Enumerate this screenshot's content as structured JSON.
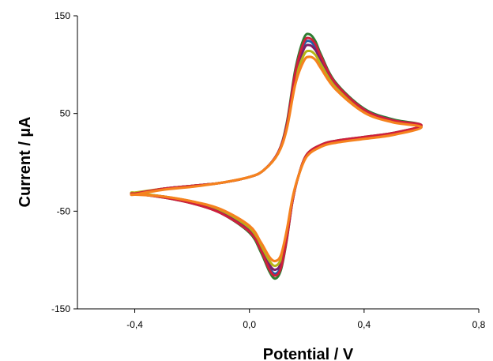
{
  "chart_data": {
    "type": "line",
    "title": "",
    "xlabel": "Potential / V",
    "ylabel": "Current / µA",
    "xlim": [
      -0.6,
      0.8
    ],
    "ylim": [
      -150,
      150
    ],
    "xticks": [
      -0.4,
      0.0,
      0.4,
      0.8
    ],
    "xtick_labels": [
      "-0,4",
      "0,0",
      "0,4",
      "0,8"
    ],
    "yticks": [
      -150,
      -50,
      50,
      150
    ],
    "ytick_labels": [
      "-150",
      "-50",
      "50",
      "150"
    ],
    "grid": false,
    "legend": "none",
    "series": [
      {
        "color": "#2e7d32",
        "x": [
          -0.4,
          -0.3,
          -0.2,
          -0.1,
          0.0,
          0.05,
          0.1,
          0.13,
          0.16,
          0.19,
          0.21,
          0.23,
          0.25,
          0.3,
          0.4,
          0.5,
          0.6,
          0.5,
          0.4,
          0.3,
          0.25,
          0.2,
          0.17,
          0.15,
          0.13,
          0.11,
          0.09,
          0.07,
          0.04,
          0.0,
          -0.1,
          -0.2,
          -0.3,
          -0.4
        ],
        "y": [
          -32,
          -27,
          -24,
          -21,
          -15,
          -8,
          10,
          40,
          95,
          127,
          131,
          124,
          110,
          82,
          55,
          44,
          38,
          30,
          26,
          22,
          18,
          8,
          -15,
          -40,
          -80,
          -110,
          -119,
          -112,
          -92,
          -72,
          -52,
          -42,
          -36,
          -32
        ]
      },
      {
        "color": "#1f5faa",
        "x": [
          -0.4,
          -0.3,
          -0.2,
          -0.1,
          0.0,
          0.05,
          0.1,
          0.13,
          0.16,
          0.19,
          0.21,
          0.23,
          0.25,
          0.3,
          0.4,
          0.5,
          0.6,
          0.5,
          0.4,
          0.3,
          0.25,
          0.2,
          0.17,
          0.15,
          0.13,
          0.11,
          0.09,
          0.07,
          0.04,
          0.0,
          -0.1,
          -0.2,
          -0.3,
          -0.4
        ],
        "y": [
          -32,
          -27,
          -24,
          -21,
          -15,
          -8,
          10,
          38,
          90,
          120,
          124,
          118,
          106,
          80,
          54,
          43,
          37,
          29,
          25,
          21,
          17,
          7,
          -15,
          -40,
          -78,
          -106,
          -114,
          -108,
          -89,
          -70,
          -51,
          -41,
          -35,
          -32
        ]
      },
      {
        "color": "#7a1f6b",
        "x": [
          -0.4,
          -0.3,
          -0.2,
          -0.1,
          0.0,
          0.05,
          0.1,
          0.13,
          0.16,
          0.19,
          0.21,
          0.23,
          0.25,
          0.3,
          0.4,
          0.5,
          0.6,
          0.5,
          0.4,
          0.3,
          0.25,
          0.2,
          0.17,
          0.15,
          0.13,
          0.11,
          0.09,
          0.07,
          0.04,
          0.0,
          -0.1,
          -0.2,
          -0.3,
          -0.4
        ],
        "y": [
          -32,
          -27,
          -24,
          -21,
          -15,
          -8,
          10,
          37,
          88,
          116,
          120,
          115,
          104,
          79,
          53,
          42,
          37,
          29,
          25,
          21,
          17,
          7,
          -15,
          -40,
          -76,
          -103,
          -110,
          -105,
          -87,
          -69,
          -50,
          -41,
          -35,
          -32
        ]
      },
      {
        "color": "#b5b516",
        "x": [
          -0.4,
          -0.3,
          -0.2,
          -0.1,
          0.0,
          0.05,
          0.1,
          0.13,
          0.16,
          0.19,
          0.21,
          0.23,
          0.25,
          0.3,
          0.4,
          0.5,
          0.6,
          0.5,
          0.4,
          0.3,
          0.25,
          0.2,
          0.17,
          0.15,
          0.13,
          0.11,
          0.09,
          0.07,
          0.04,
          0.0,
          -0.1,
          -0.2,
          -0.3,
          -0.4
        ],
        "y": [
          -31,
          -27,
          -24,
          -21,
          -15,
          -8,
          9,
          35,
          84,
          110,
          114,
          110,
          100,
          77,
          52,
          42,
          37,
          29,
          25,
          21,
          17,
          7,
          -15,
          -38,
          -74,
          -99,
          -106,
          -101,
          -85,
          -67,
          -49,
          -40,
          -35,
          -31
        ]
      },
      {
        "color": "#cf1f3c",
        "x": [
          -0.4,
          -0.3,
          -0.2,
          -0.1,
          0.0,
          0.05,
          0.1,
          0.13,
          0.16,
          0.19,
          0.21,
          0.23,
          0.25,
          0.3,
          0.4,
          0.5,
          0.6,
          0.5,
          0.4,
          0.3,
          0.25,
          0.2,
          0.17,
          0.15,
          0.13,
          0.11,
          0.09,
          0.07,
          0.04,
          0.0,
          -0.1,
          -0.2,
          -0.3,
          -0.4
        ],
        "y": [
          -32,
          -27,
          -24,
          -21,
          -15,
          -8,
          10,
          38,
          92,
          123,
          127,
          121,
          108,
          81,
          54,
          43,
          38,
          30,
          26,
          22,
          18,
          8,
          -15,
          -40,
          -79,
          -108,
          -116,
          -110,
          -90,
          -71,
          -52,
          -42,
          -36,
          -32
        ]
      },
      {
        "color": "#f5821f",
        "x": [
          -0.4,
          -0.3,
          -0.2,
          -0.1,
          0.0,
          0.05,
          0.1,
          0.13,
          0.16,
          0.19,
          0.21,
          0.23,
          0.25,
          0.3,
          0.4,
          0.5,
          0.6,
          0.5,
          0.4,
          0.3,
          0.25,
          0.2,
          0.17,
          0.15,
          0.13,
          0.11,
          0.09,
          0.07,
          0.04,
          0.0,
          -0.1,
          -0.2,
          -0.3,
          -0.4
        ],
        "y": [
          -33,
          -28,
          -25,
          -21,
          -15,
          -8,
          9,
          34,
          80,
          104,
          108,
          105,
          96,
          75,
          51,
          41,
          36,
          28,
          24,
          20,
          16,
          6,
          -15,
          -37,
          -70,
          -95,
          -101,
          -97,
          -82,
          -65,
          -48,
          -40,
          -35,
          -33
        ]
      }
    ]
  }
}
